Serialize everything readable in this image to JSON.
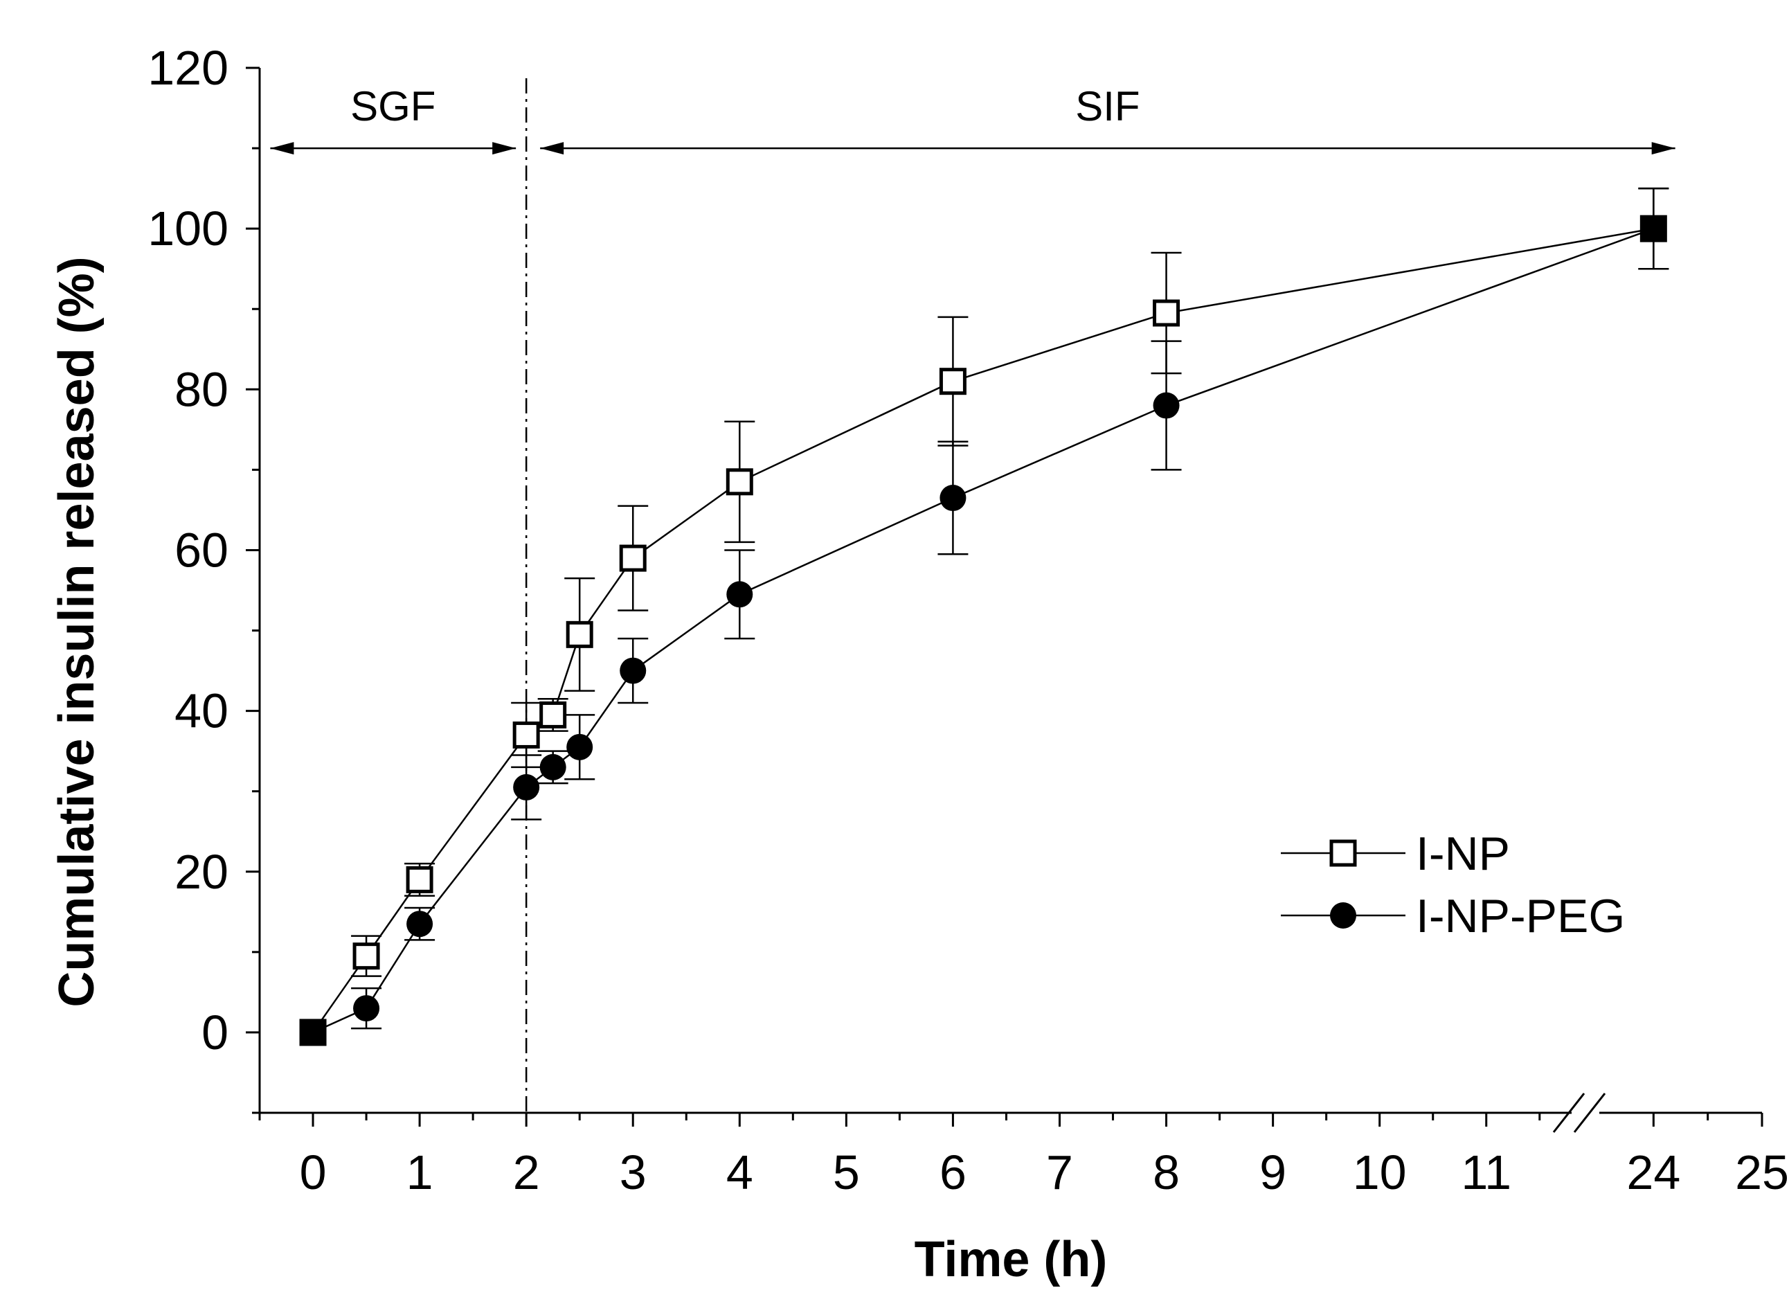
{
  "chart_data": {
    "type": "line",
    "xlabel": "Time (h)",
    "ylabel": "Cumulative insulin released (%)",
    "xlim": [
      -0.5,
      25
    ],
    "ylim": [
      -10,
      120
    ],
    "x_axis_break": [
      11.8,
      23.5
    ],
    "x_ticks": [
      0,
      1,
      2,
      3,
      4,
      5,
      6,
      7,
      8,
      9,
      10,
      11,
      24,
      25
    ],
    "y_ticks": [
      0,
      20,
      40,
      60,
      80,
      100,
      120
    ],
    "phase_boundary_x": 2,
    "regions": [
      {
        "label": "SGF",
        "from": -0.5,
        "to": 2
      },
      {
        "label": "SIF",
        "from": 2,
        "to": 24
      }
    ],
    "legend_position": "bottom-right",
    "series": [
      {
        "name": "I-NP",
        "marker": "open-square",
        "x": [
          0,
          0.5,
          1,
          2,
          2.25,
          2.5,
          3,
          4,
          6,
          8,
          24
        ],
        "y": [
          0,
          9.5,
          19,
          37,
          39.5,
          49.5,
          59,
          68.5,
          81,
          89.5,
          100
        ],
        "err": [
          0,
          2.5,
          2,
          4,
          2,
          7,
          6.5,
          7.5,
          8,
          7.5,
          5
        ]
      },
      {
        "name": "I-NP-PEG",
        "marker": "filled-circle",
        "x": [
          0,
          0.5,
          1,
          2,
          2.25,
          2.5,
          3,
          4,
          6,
          8,
          24
        ],
        "y": [
          0,
          3,
          13.5,
          30.5,
          33,
          35.5,
          45,
          54.5,
          66.5,
          78,
          100
        ],
        "err": [
          0,
          2.5,
          2,
          4,
          2,
          4,
          4,
          5.5,
          7,
          8,
          5
        ]
      }
    ]
  }
}
